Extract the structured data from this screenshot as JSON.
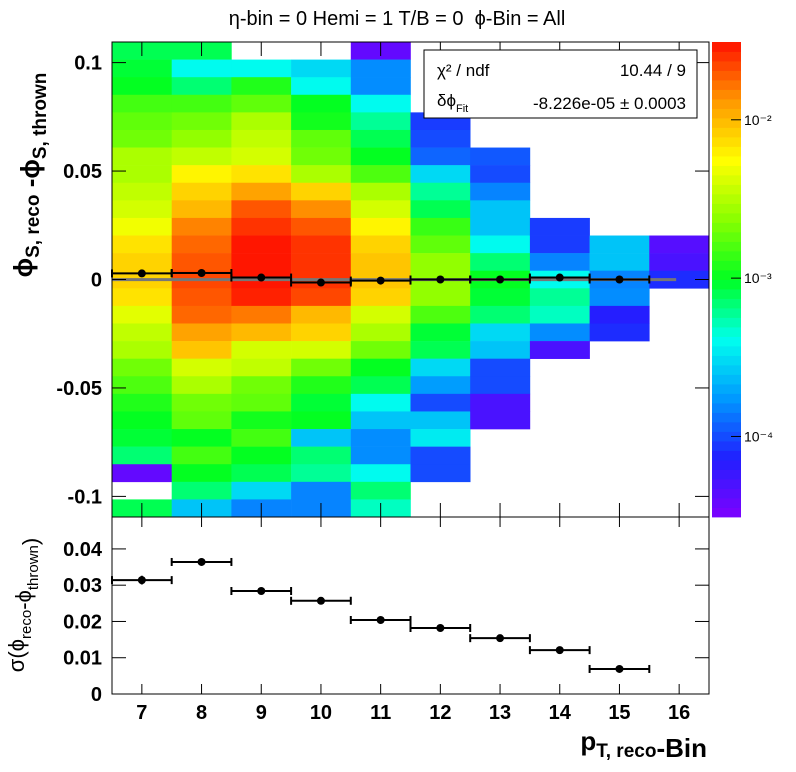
{
  "chart_data": [
    {
      "type": "heatmap",
      "title": "η-bin = 0 Hemi = 1 T/B = 0  ϕ-Bin = All",
      "ylabel": [
        {
          "text": "ϕ",
          "sub": "S, reco"
        },
        {
          "text": " -ϕ",
          "sub": "S, thrown"
        }
      ],
      "xlim": [
        6.5,
        16.5
      ],
      "xticks": [
        7,
        8,
        9,
        10,
        11,
        12,
        13,
        14,
        15,
        16
      ],
      "ylim": [
        -0.1095,
        0.1095
      ],
      "yticks": [
        -0.1,
        -0.05,
        0,
        0.05,
        0.1
      ],
      "x": [
        7,
        8,
        9,
        10,
        11,
        12,
        13,
        14,
        15,
        16
      ],
      "z": [
        [
          0.0008,
          0.0009,
          0.001,
          0.0015,
          0.0018,
          0.002,
          0.003,
          0.003,
          0.0035,
          0.004,
          0.005,
          0.007,
          0.008,
          0.008,
          0.007,
          0.0045,
          0.0035,
          0.003,
          0.002,
          0.0016,
          0.0012,
          0.001,
          0.0009,
          0.0007,
          4e-05,
          null,
          0.0008
        ],
        [
          0.0008,
          0.0004,
          0.0007,
          0.0015,
          0.002,
          0.0025,
          0.0035,
          0.006,
          0.008,
          0.01,
          0.015,
          0.018,
          0.02,
          0.022,
          0.02,
          0.018,
          0.012,
          0.009,
          0.004,
          0.003,
          0.002,
          0.0018,
          0.001,
          0.0015,
          0.001,
          0.0007,
          0.00025
        ],
        [
          null,
          0.0004,
          0.0012,
          0.0018,
          0.003,
          0.0035,
          0.004,
          0.007,
          0.012,
          0.02,
          0.025,
          0.03,
          0.03,
          0.03,
          0.028,
          0.016,
          0.01,
          0.004,
          0.0035,
          0.002,
          0.0018,
          0.0011,
          0.0015,
          0.001,
          0.0008,
          0.0003,
          0.00015
        ],
        [
          null,
          0.0003,
          0.0004,
          0.001,
          0.0011,
          0.0018,
          0.002,
          0.003,
          0.008,
          0.014,
          0.02,
          0.025,
          0.025,
          0.025,
          0.022,
          0.01,
          0.008,
          0.004,
          0.002,
          0.0012,
          0.0009,
          0.001,
          0.00025,
          0.0007,
          0.0006,
          0.00015,
          0.00015
        ],
        [
          4e-05,
          0.00016,
          0.00016,
          0.0004,
          0.0006,
          0.0008,
          0.001,
          0.0016,
          0.003,
          0.004,
          0.006,
          0.008,
          0.009,
          0.009,
          0.008,
          0.004,
          0.003,
          0.002,
          0.001,
          0.0008,
          0.0004,
          0.00025,
          0.00016,
          0.00016,
          0.0004,
          0.0007,
          0.0005
        ],
        [
          null,
          null,
          null,
          null,
          9e-05,
          0.0001,
          0.00012,
          0.0003,
          0.0006,
          0.0008,
          0.0014,
          0.0018,
          0.0025,
          0.0025,
          0.0025,
          0.0016,
          0.0009,
          0.0008,
          0.0003,
          0.00018,
          0.0001,
          0.00025,
          0.00035,
          0.0001,
          0.0001,
          null,
          null
        ],
        [
          null,
          null,
          null,
          null,
          null,
          null,
          0.00011,
          0.0001,
          0.00015,
          0.00025,
          0.00025,
          0.0004,
          0.0007,
          0.001,
          0.0009,
          0.0007,
          0.0003,
          0.00025,
          0.0001,
          0.0001,
          5e-05,
          5e-05,
          null,
          null,
          null,
          null,
          null
        ],
        [
          null,
          null,
          null,
          null,
          null,
          null,
          null,
          null,
          null,
          null,
          9e-05,
          9e-05,
          0.00015,
          0.0004,
          0.0006,
          0.0005,
          0.00016,
          5e-05,
          null,
          null,
          null,
          null,
          null,
          null,
          null,
          null,
          null
        ],
        [
          null,
          null,
          null,
          null,
          null,
          null,
          null,
          null,
          null,
          null,
          null,
          0.00025,
          0.00025,
          0.00015,
          0.00016,
          7e-05,
          8e-05,
          null,
          null,
          null,
          null,
          null,
          null,
          null,
          null,
          null,
          null
        ],
        [
          null,
          null,
          null,
          null,
          null,
          null,
          null,
          null,
          null,
          null,
          null,
          4.5e-05,
          5e-05,
          8e-05,
          null,
          null,
          null,
          null,
          null,
          null,
          null,
          null,
          null,
          null,
          null,
          null,
          null
        ]
      ],
      "zlim": [
        3.1e-05,
        0.031
      ],
      "log_z": true,
      "zticks": [
        {
          "value": 0.0001,
          "label": "10⁻⁴"
        },
        {
          "value": 0.001,
          "label": "10⁻³"
        },
        {
          "value": 0.01,
          "label": "10⁻²"
        }
      ],
      "palette": [
        "#7f00ff",
        "#2020ff",
        "#0099ff",
        "#00ffee",
        "#00ff22",
        "#88ff00",
        "#ffff00",
        "#ff9900",
        "#ff1100"
      ],
      "points": {
        "x": [
          7,
          8,
          9,
          10,
          11,
          12,
          13,
          14,
          15
        ],
        "values": [
          0.0028,
          0.003,
          0.0009,
          -0.0014,
          -0.0005,
          0,
          0,
          0.0009,
          0
        ],
        "yerr": [
          0.0016,
          0.0008,
          0.0006,
          0.0006,
          0.0006,
          0.0006,
          0.0006,
          0.0006,
          0.0007
        ],
        "xerr": [
          0.5,
          0.5,
          0.5,
          0.5,
          0.5,
          0.5,
          0.5,
          0.5,
          0.5
        ],
        "color": "#000000"
      },
      "fit": {
        "value": -8.226e-05,
        "x": [
          6.5,
          15.95
        ],
        "color": "#777777"
      },
      "stats": [
        {
          "label": "χ² / ndf",
          "value": "10.44 / 9"
        },
        {
          "label": "δϕ",
          "label_sub": "Fit",
          "value": "-8.226e-05 ± 0.0003"
        }
      ]
    },
    {
      "type": "errorbar",
      "ylabel": [
        {
          "text": "σ(ϕ",
          "sub": "reco"
        },
        {
          "text": "-ϕ",
          "sub": "thrown"
        },
        {
          "text": ")"
        }
      ],
      "xlabel": [
        {
          "text": "p",
          "sub": "T, reco"
        },
        {
          "text": "-Bin"
        }
      ],
      "xlim": [
        6.5,
        16.5
      ],
      "xticks": [
        7,
        8,
        9,
        10,
        11,
        12,
        13,
        14,
        15,
        16
      ],
      "ylim": [
        0,
        0.0488
      ],
      "yticks": [
        0,
        0.01,
        0.02,
        0.03,
        0.04
      ],
      "x": [
        7,
        8,
        9,
        10,
        11,
        12,
        13,
        14,
        15
      ],
      "values": [
        0.0314,
        0.0364,
        0.0284,
        0.0257,
        0.0204,
        0.0182,
        0.0154,
        0.0121,
        0.0069
      ],
      "yerr": [
        0.0012,
        0.001,
        0.0005,
        0.0005,
        0.0004,
        0.0004,
        0.0004,
        0.0004,
        0.0005
      ],
      "xerr": [
        0.5,
        0.5,
        0.5,
        0.5,
        0.5,
        0.5,
        0.5,
        0.5,
        0.5
      ],
      "color": "#000000"
    }
  ]
}
